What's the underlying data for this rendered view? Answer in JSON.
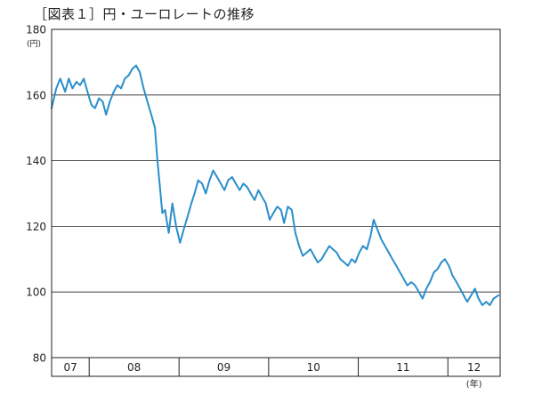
{
  "chart_data": {
    "type": "line",
    "title": "［図表１］円・ユーロレートの推移",
    "y_unit": "(円)",
    "x_unit": "(年)",
    "ylim": [
      80,
      180
    ],
    "yticks": [
      80,
      100,
      120,
      140,
      160,
      180
    ],
    "ytick_labels": [
      "80",
      "100",
      "120",
      "140",
      "160",
      "180"
    ],
    "grid": "horizontal",
    "line_color": "#2a8fcb",
    "x_range": [
      "2007-08",
      "2012-08"
    ],
    "year_labels": [
      {
        "label": "07",
        "from": "2007-08",
        "to": "2008-01"
      },
      {
        "label": "08",
        "from": "2008-01",
        "to": "2009-01"
      },
      {
        "label": "09",
        "from": "2009-01",
        "to": "2010-01"
      },
      {
        "label": "10",
        "from": "2010-01",
        "to": "2011-01"
      },
      {
        "label": "11",
        "from": "2011-01",
        "to": "2012-01"
      },
      {
        "label": "12",
        "from": "2012-01",
        "to": "2012-08"
      }
    ],
    "series": [
      {
        "x": [
          "2007-08-01",
          "2007-08-20",
          "2007-09-05",
          "2007-09-25",
          "2007-10-10",
          "2007-10-25",
          "2007-11-10",
          "2007-11-25",
          "2007-12-10",
          "2007-12-25",
          "2008-01-10",
          "2008-01-25",
          "2008-02-10",
          "2008-02-25",
          "2008-03-10",
          "2008-03-25",
          "2008-04-10",
          "2008-04-25",
          "2008-05-10",
          "2008-05-25",
          "2008-06-10",
          "2008-06-25",
          "2008-07-10",
          "2008-07-25",
          "2008-08-10",
          "2008-08-25",
          "2008-09-10",
          "2008-09-25",
          "2008-10-05",
          "2008-10-15",
          "2008-10-25",
          "2008-11-05",
          "2008-11-20",
          "2008-12-05",
          "2008-12-20",
          "2009-01-05",
          "2009-01-20",
          "2009-02-05",
          "2009-02-20",
          "2009-03-05",
          "2009-03-20",
          "2009-04-05",
          "2009-04-20",
          "2009-05-05",
          "2009-05-20",
          "2009-06-05",
          "2009-06-20",
          "2009-07-05",
          "2009-07-20",
          "2009-08-05",
          "2009-08-20",
          "2009-09-05",
          "2009-09-20",
          "2009-10-05",
          "2009-10-20",
          "2009-11-05",
          "2009-11-20",
          "2009-12-05",
          "2009-12-20",
          "2010-01-05",
          "2010-01-20",
          "2010-02-05",
          "2010-02-20",
          "2010-03-05",
          "2010-03-20",
          "2010-04-05",
          "2010-04-20",
          "2010-05-05",
          "2010-05-20",
          "2010-06-05",
          "2010-06-20",
          "2010-07-05",
          "2010-07-20",
          "2010-08-05",
          "2010-08-20",
          "2010-09-05",
          "2010-09-20",
          "2010-10-05",
          "2010-10-20",
          "2010-11-05",
          "2010-11-20",
          "2010-12-05",
          "2010-12-20",
          "2011-01-05",
          "2011-01-20",
          "2011-02-05",
          "2011-02-20",
          "2011-03-05",
          "2011-03-20",
          "2011-04-05",
          "2011-04-20",
          "2011-05-05",
          "2011-05-20",
          "2011-06-05",
          "2011-06-20",
          "2011-07-05",
          "2011-07-20",
          "2011-08-05",
          "2011-08-20",
          "2011-09-05",
          "2011-09-20",
          "2011-10-05",
          "2011-10-20",
          "2011-11-05",
          "2011-11-20",
          "2011-12-05",
          "2011-12-20",
          "2012-01-05",
          "2012-01-20",
          "2012-02-05",
          "2012-02-20",
          "2012-03-05",
          "2012-03-20",
          "2012-04-05",
          "2012-04-20",
          "2012-05-05",
          "2012-05-20",
          "2012-06-05",
          "2012-06-20",
          "2012-07-05",
          "2012-07-25"
        ],
        "y": [
          156,
          162,
          165,
          161,
          165,
          162,
          164,
          163,
          165,
          161,
          157,
          156,
          159,
          158,
          154,
          158,
          161,
          163,
          162,
          165,
          166,
          168,
          169,
          167,
          162,
          158,
          154,
          150,
          140,
          132,
          124,
          125,
          118,
          127,
          120,
          115,
          119,
          123,
          127,
          130,
          134,
          133,
          130,
          134,
          137,
          135,
          133,
          131,
          134,
          135,
          133,
          131,
          133,
          132,
          130,
          128,
          131,
          129,
          127,
          122,
          124,
          126,
          125,
          121,
          126,
          125,
          118,
          114,
          111,
          112,
          113,
          111,
          109,
          110,
          112,
          114,
          113,
          112,
          110,
          109,
          108,
          110,
          109,
          112,
          114,
          113,
          117,
          122,
          119,
          116,
          114,
          112,
          110,
          108,
          106,
          104,
          102,
          103,
          102,
          100,
          98,
          101,
          103,
          106,
          107,
          109,
          110,
          108,
          105,
          103,
          101,
          99,
          97,
          99,
          101,
          98,
          96,
          97,
          96,
          98,
          99
        ]
      }
    ]
  }
}
